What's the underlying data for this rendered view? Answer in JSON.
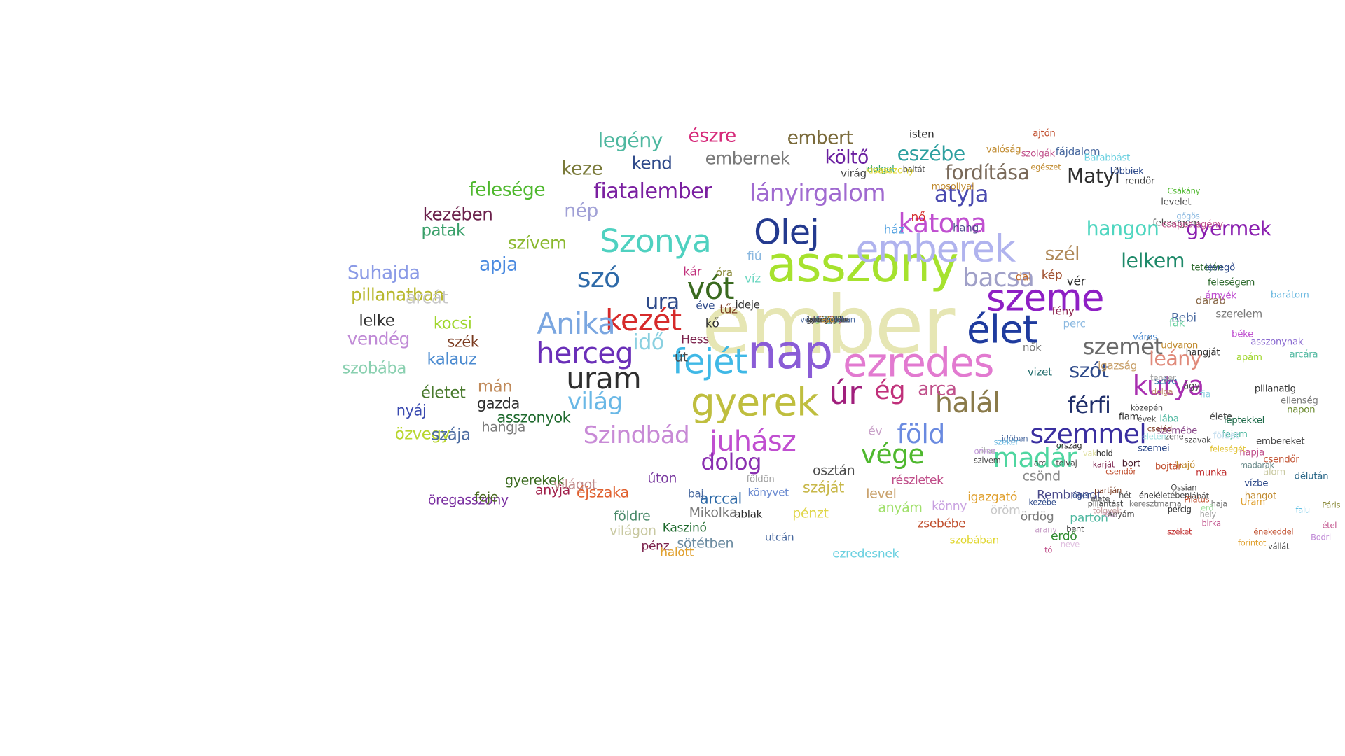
{
  "words": [
    {
      "text": "ember",
      "color": "#e6e6b4"
    },
    {
      "text": "asszony",
      "color": "#a6e22e"
    },
    {
      "text": "nap",
      "color": "#8a5cd6"
    },
    {
      "text": "ezredes",
      "color": "#e27ad0"
    },
    {
      "text": "élet",
      "color": "#1f3b9e"
    },
    {
      "text": "szeme",
      "color": "#8e1fc4"
    },
    {
      "text": "emberek",
      "color": "#b0b3ee"
    },
    {
      "text": "gyerek",
      "color": "#bfbe3e"
    },
    {
      "text": "Olej",
      "color": "#243a8f"
    },
    {
      "text": "Szonya",
      "color": "#4fd1c0"
    },
    {
      "text": "fejét",
      "color": "#3fb8e6"
    },
    {
      "text": "herceg",
      "color": "#6a2fb8"
    },
    {
      "text": "uram",
      "color": "#2e2e2e"
    },
    {
      "text": "kezét",
      "color": "#d62a2a"
    },
    {
      "text": "Anika",
      "color": "#7aa6e0"
    },
    {
      "text": "úr",
      "color": "#a01f7c"
    },
    {
      "text": "juhász",
      "color": "#c04fd0"
    },
    {
      "text": "halál",
      "color": "#8a7a4a"
    },
    {
      "text": "föld",
      "color": "#6a8ae0"
    },
    {
      "text": "madár",
      "color": "#4fd6a0"
    },
    {
      "text": "vége",
      "color": "#4fb82e"
    },
    {
      "text": "kutya",
      "color": "#a82fb0"
    },
    {
      "text": "szemmel",
      "color": "#3a2fa0"
    },
    {
      "text": "katona",
      "color": "#c04fd0"
    },
    {
      "text": "bacsa",
      "color": "#a0a0c8"
    },
    {
      "text": "vót",
      "color": "#3a6a1f"
    },
    {
      "text": "szó",
      "color": "#2e6aa8"
    },
    {
      "text": "világ",
      "color": "#6ab8e6"
    },
    {
      "text": "Szindbád",
      "color": "#c88ad6"
    },
    {
      "text": "dolog",
      "color": "#8a2fb0"
    },
    {
      "text": "férfi",
      "color": "#1f2e6a"
    },
    {
      "text": "ég",
      "color": "#c0307a"
    },
    {
      "text": "arca",
      "color": "#c04f8a"
    },
    {
      "text": "szemét",
      "color": "#6a6a6a"
    },
    {
      "text": "leány",
      "color": "#e08a7a"
    },
    {
      "text": "szót",
      "color": "#2e4a8a"
    },
    {
      "text": "lányirgalom",
      "color": "#a06ad0"
    },
    {
      "text": "fiatalember",
      "color": "#7a1fa0"
    },
    {
      "text": "atyja",
      "color": "#4a4ab0"
    },
    {
      "text": "fordítása",
      "color": "#7a6a5a"
    },
    {
      "text": "Matyi",
      "color": "#2e2e2e"
    },
    {
      "text": "hangon",
      "color": "#4fd6c0"
    },
    {
      "text": "gyermek",
      "color": "#8a1fb0"
    },
    {
      "text": "lelkem",
      "color": "#1f8a6a"
    },
    {
      "text": "szél",
      "color": "#b08a5a"
    },
    {
      "text": "ura",
      "color": "#2e4a8a"
    },
    {
      "text": "idő",
      "color": "#8ad0e0"
    },
    {
      "text": "legény",
      "color": "#4fb8a0"
    },
    {
      "text": "észre",
      "color": "#d62a7a"
    },
    {
      "text": "embert",
      "color": "#7a6a3a"
    },
    {
      "text": "eszébe",
      "color": "#2ea0a0"
    },
    {
      "text": "költő",
      "color": "#6a1fa0"
    },
    {
      "text": "embernek",
      "color": "#7a7a7a"
    },
    {
      "text": "keze",
      "color": "#7a7a3a"
    },
    {
      "text": "kend",
      "color": "#2e4a8a"
    },
    {
      "text": "felesége",
      "color": "#4fb82e"
    },
    {
      "text": "kezében",
      "color": "#6a1f4a"
    },
    {
      "text": "nép",
      "color": "#a0a0d6"
    },
    {
      "text": "patak",
      "color": "#3aa06a"
    },
    {
      "text": "szívem",
      "color": "#8ab82e"
    },
    {
      "text": "apja",
      "color": "#4a8ae0"
    },
    {
      "text": "Suhajda",
      "color": "#8a9ae6"
    },
    {
      "text": "pillanatban",
      "color": "#b8b82e"
    },
    {
      "text": "arcát",
      "color": "#c8c8c8"
    },
    {
      "text": "lelke",
      "color": "#2e2e2e"
    },
    {
      "text": "kocsi",
      "color": "#a0d62e"
    },
    {
      "text": "vendég",
      "color": "#c08ad6"
    },
    {
      "text": "kalauz",
      "color": "#4a8ad0"
    },
    {
      "text": "szék",
      "color": "#7a3a1f"
    },
    {
      "text": "szobába",
      "color": "#8ad0b0"
    },
    {
      "text": "életet",
      "color": "#4a7a2e"
    },
    {
      "text": "mán",
      "color": "#c08a5a"
    },
    {
      "text": "nyáj",
      "color": "#3a4ab0"
    },
    {
      "text": "asszonyok",
      "color": "#1f6a2e"
    },
    {
      "text": "gazda",
      "color": "#2e2e2e"
    },
    {
      "text": "özvegy",
      "color": "#b8d62e"
    },
    {
      "text": "szája",
      "color": "#4a6aa0"
    },
    {
      "text": "hangja",
      "color": "#7a7a7a"
    },
    {
      "text": "gyerekek",
      "color": "#3a6a1f"
    },
    {
      "text": "anyja",
      "color": "#a01f4a"
    },
    {
      "text": "öregasszony",
      "color": "#7a2fa0"
    },
    {
      "text": "feje",
      "color": "#4a6a1f"
    },
    {
      "text": "világot",
      "color": "#c08a8a"
    },
    {
      "text": "éjszaka",
      "color": "#e0602e"
    },
    {
      "text": "úton",
      "color": "#7a3aa0"
    },
    {
      "text": "arccal",
      "color": "#2e6aa8"
    },
    {
      "text": "földre",
      "color": "#4a8a6a"
    },
    {
      "text": "világon",
      "color": "#c8c8a0"
    },
    {
      "text": "pénz",
      "color": "#7a1f4a"
    },
    {
      "text": "Kaszinó",
      "color": "#1f6a2e"
    },
    {
      "text": "halott",
      "color": "#e0a02e"
    },
    {
      "text": "sötétben",
      "color": "#6a8aa0"
    },
    {
      "text": "Mikolka",
      "color": "#7a7a7a"
    },
    {
      "text": "pénzt",
      "color": "#e0d64a"
    },
    {
      "text": "száját",
      "color": "#c8b84a"
    },
    {
      "text": "anyám",
      "color": "#a0e06a"
    },
    {
      "text": "osztán",
      "color": "#4a4a4a"
    },
    {
      "text": "level",
      "color": "#c8a06a"
    },
    {
      "text": "könny",
      "color": "#c8a0e0"
    },
    {
      "text": "részletek",
      "color": "#c04f8a"
    },
    {
      "text": "csönd",
      "color": "#8a8a8a"
    },
    {
      "text": "igazgató",
      "color": "#e0a02e"
    },
    {
      "text": "öröm",
      "color": "#c8c8c8"
    },
    {
      "text": "zsebébe",
      "color": "#c04f2e"
    },
    {
      "text": "ördög",
      "color": "#7a7a7a"
    },
    {
      "text": "Rembrandt",
      "color": "#4a4a8a"
    },
    {
      "text": "parton",
      "color": "#4fb8a0"
    },
    {
      "text": "erdő",
      "color": "#2e8a2e"
    },
    {
      "text": "szobában",
      "color": "#e0d62e"
    },
    {
      "text": "ezredesnek",
      "color": "#6ad0e0"
    },
    {
      "text": "utcán",
      "color": "#4a6aa0"
    },
    {
      "text": "könyvet",
      "color": "#6a8ad0"
    },
    {
      "text": "ablak",
      "color": "#2e2e2e"
    },
    {
      "text": "baj",
      "color": "#4a6aa0"
    },
    {
      "text": "földön",
      "color": "#a0a0a0"
    },
    {
      "text": "év",
      "color": "#c8a0c8"
    },
    {
      "text": "út",
      "color": "#4a4a4a"
    },
    {
      "text": "Hess",
      "color": "#7a1f4a"
    },
    {
      "text": "kő",
      "color": "#2e2e2e"
    },
    {
      "text": "tűz",
      "color": "#7a3a1f"
    },
    {
      "text": "éve",
      "color": "#2e4a8a"
    },
    {
      "text": "ideje",
      "color": "#2e2e2e"
    },
    {
      "text": "kár",
      "color": "#c02e7a"
    },
    {
      "text": "óra",
      "color": "#8a8a3a"
    },
    {
      "text": "fiú",
      "color": "#8ab8e0"
    },
    {
      "text": "víz",
      "color": "#6ad6c0"
    },
    {
      "text": "ház",
      "color": "#4fa0e0"
    },
    {
      "text": "nő",
      "color": "#d62a2a"
    },
    {
      "text": "hang",
      "color": "#4a4a8a"
    },
    {
      "text": "kép",
      "color": "#a04f2e"
    },
    {
      "text": "vér",
      "color": "#2e2e2e"
    },
    {
      "text": "dal",
      "color": "#c06a2e"
    },
    {
      "text": "fény",
      "color": "#8a1f4a"
    },
    {
      "text": "perc",
      "color": "#8ab8e0"
    },
    {
      "text": "Rebi",
      "color": "#4a6aa0"
    },
    {
      "text": "darab",
      "color": "#8a6a4a"
    },
    {
      "text": "fák",
      "color": "#6ad0a0"
    },
    {
      "text": "város",
      "color": "#4a8ad0"
    },
    {
      "text": "nők",
      "color": "#7a7a7a"
    },
    {
      "text": "vizet",
      "color": "#1f6a6a"
    },
    {
      "text": "udvaron",
      "color": "#c08a2e"
    },
    {
      "text": "igazság",
      "color": "#c8a06a"
    },
    {
      "text": "szíve",
      "color": "#2e6aa8"
    },
    {
      "text": "fia",
      "color": "#8ad0e0"
    },
    {
      "text": "élete",
      "color": "#4a4a4a"
    },
    {
      "text": "léptekkel",
      "color": "#1f6a4a"
    },
    {
      "text": "szemébe",
      "color": "#8a4a8a"
    },
    {
      "text": "fejem",
      "color": "#4fb8a0"
    },
    {
      "text": "hajó",
      "color": "#c08a2e"
    },
    {
      "text": "szemei",
      "color": "#2e4a8a"
    },
    {
      "text": "napja",
      "color": "#c04f8a"
    },
    {
      "text": "bojtár",
      "color": "#c04f2e"
    },
    {
      "text": "munka",
      "color": "#c02e2e"
    },
    {
      "text": "bort",
      "color": "#4a1f2e"
    },
    {
      "text": "Uram",
      "color": "#e0a02e"
    },
    {
      "text": "hangot",
      "color": "#c08a2e"
    },
    {
      "text": "isten",
      "color": "#2e2e2e"
    },
    {
      "text": "virág",
      "color": "#4a4a4a"
    },
    {
      "text": "dolgot",
      "color": "#2ea06a"
    },
    {
      "text": "kisasszony",
      "color": "#e0d62e"
    },
    {
      "text": "baltát",
      "color": "#4a4a4a"
    },
    {
      "text": "mosollyal",
      "color": "#c08a2e"
    },
    {
      "text": "szolgák",
      "color": "#c04f8a"
    },
    {
      "text": "fájdalom",
      "color": "#4a6aa0"
    },
    {
      "text": "Barabbást",
      "color": "#6ad0e0"
    },
    {
      "text": "valóság",
      "color": "#c08a2e"
    },
    {
      "text": "ajtón",
      "color": "#c04f2e"
    },
    {
      "text": "egészet",
      "color": "#c08a2e"
    },
    {
      "text": "többiek",
      "color": "#2e4a8a"
    },
    {
      "text": "rendőr",
      "color": "#4a4a4a"
    },
    {
      "text": "levelet",
      "color": "#4a4a4a"
    },
    {
      "text": "felesegem",
      "color": "#4a4a4a"
    },
    {
      "text": "csaposlegény",
      "color": "#c04f8a"
    },
    {
      "text": "Csákány",
      "color": "#4fb82e"
    },
    {
      "text": "gőgös",
      "color": "#8ab8e0"
    },
    {
      "text": "tetején",
      "color": "#2e6a2e"
    },
    {
      "text": "levegő",
      "color": "#2e4a8a"
    },
    {
      "text": "feleségem",
      "color": "#2e6a2e"
    },
    {
      "text": "szerelem",
      "color": "#7a7a7a"
    },
    {
      "text": "barátom",
      "color": "#6ab8e0"
    },
    {
      "text": "árnyék",
      "color": "#c04fd0"
    },
    {
      "text": "béke",
      "color": "#c04fd0"
    },
    {
      "text": "asszonynak",
      "color": "#8a6ad0"
    },
    {
      "text": "apám",
      "color": "#a0d62e"
    },
    {
      "text": "arcára",
      "color": "#4fb8a0"
    },
    {
      "text": "napon",
      "color": "#6a8a2e"
    },
    {
      "text": "ellenség",
      "color": "#7a7a7a"
    },
    {
      "text": "pillanatig",
      "color": "#2e2e2e"
    },
    {
      "text": "ágy",
      "color": "#4a4a4a"
    },
    {
      "text": "hangját",
      "color": "#2e2e2e"
    },
    {
      "text": "tenger",
      "color": "#a0a0a0"
    },
    {
      "text": "dolga",
      "color": "#c08a6a"
    },
    {
      "text": "közepén",
      "color": "#4a4a4a"
    },
    {
      "text": "lába",
      "color": "#4fb8a0"
    },
    {
      "text": "fiam",
      "color": "#2e2e2e"
    },
    {
      "text": "földet",
      "color": "#c8e0f0"
    },
    {
      "text": "embereket",
      "color": "#4a4a4a"
    },
    {
      "text": "álom",
      "color": "#c8c8a0"
    },
    {
      "text": "délután",
      "color": "#2e6a8a"
    },
    {
      "text": "vízbe",
      "color": "#2e4a8a"
    },
    {
      "text": "csendőr",
      "color": "#c04f2e"
    },
    {
      "text": "madarak",
      "color": "#6a8a8a"
    },
    {
      "text": "haja",
      "color": "#7a7a7a"
    },
    {
      "text": "percig",
      "color": "#2e2e2e"
    },
    {
      "text": "erő",
      "color": "#a0e0a0"
    },
    {
      "text": "hely",
      "color": "#a0a0a0"
    },
    {
      "text": "falu",
      "color": "#4fb8e0"
    },
    {
      "text": "Páris",
      "color": "#8a8a3a"
    },
    {
      "text": "étel",
      "color": "#c04f8a"
    },
    {
      "text": "Bodri",
      "color": "#c08ad6"
    },
    {
      "text": "énekeddel",
      "color": "#c04f2e"
    },
    {
      "text": "forintot",
      "color": "#e0a02e"
    },
    {
      "text": "vállát",
      "color": "#4a4a4a"
    },
    {
      "text": "birka",
      "color": "#c04f8a"
    },
    {
      "text": "széket",
      "color": "#c02e2e"
    },
    {
      "text": "lábát",
      "color": "#4a4a4a"
    },
    {
      "text": "rész",
      "color": "#c8a0c8"
    },
    {
      "text": "bent",
      "color": "#2e2e2e"
    },
    {
      "text": "neve",
      "color": "#e0c0e0"
    },
    {
      "text": "tó",
      "color": "#c04f8a"
    },
    {
      "text": "kezébe",
      "color": "#2e4a8a"
    },
    {
      "text": "arany",
      "color": "#c8a0c8"
    },
    {
      "text": "ország",
      "color": "#2e2e2e"
    },
    {
      "text": "időben",
      "color": "#4a6aa0"
    },
    {
      "text": "szekér",
      "color": "#6ab8e0"
    },
    {
      "text": "hold",
      "color": "#2e2e2e"
    },
    {
      "text": "égen",
      "color": "#2e4a8a"
    },
    {
      "text": "szivem",
      "color": "#4a4a4a"
    },
    {
      "text": "vihar",
      "color": "#a0a0a0"
    },
    {
      "text": "vak",
      "color": "#e0e0a0"
    },
    {
      "text": "arc",
      "color": "#4a4a4a"
    },
    {
      "text": "tolvaj",
      "color": "#4a4a4a"
    },
    {
      "text": "orvos",
      "color": "#c8a0e0"
    },
    {
      "text": "karját",
      "color": "#7a1f4a"
    },
    {
      "text": "partján",
      "color": "#7a3a1f"
    },
    {
      "text": "élete",
      "color": "#4a4a4a"
    },
    {
      "text": "életem",
      "color": "#a0e0e0"
    },
    {
      "text": "cseléd",
      "color": "#7a3a1f"
    },
    {
      "text": "évek",
      "color": "#4a4a4a"
    },
    {
      "text": "zene",
      "color": "#4a4a4a"
    },
    {
      "text": "szavak",
      "color": "#4a4a4a"
    },
    {
      "text": "csendőr",
      "color": "#c04f2e"
    },
    {
      "text": "Ossian",
      "color": "#4a4a4a"
    },
    {
      "text": "Pilátus",
      "color": "#c04f2e"
    },
    {
      "text": "feleségét",
      "color": "#e0c02e"
    },
    {
      "text": "keresztmama",
      "color": "#7a7a7a"
    },
    {
      "text": "pillantást",
      "color": "#4a4a4a"
    },
    {
      "text": "hét",
      "color": "#4a4a4a"
    },
    {
      "text": "ének",
      "color": "#2e2e2e"
    },
    {
      "text": "életében",
      "color": "#4a4a4a"
    },
    {
      "text": "Anyám",
      "color": "#4a4a4a"
    },
    {
      "text": "tölgyek",
      "color": "#c8a0a0"
    },
    {
      "text": "levegőben",
      "color": "#4a4a4a"
    },
    {
      "text": "szörnyü",
      "color": "#2e6a2e"
    },
    {
      "text": "szavakat",
      "color": "#2e2e2e"
    },
    {
      "text": "férfiak",
      "color": "#c08a2e"
    },
    {
      "text": "ajtó",
      "color": "#c08a2e"
    },
    {
      "text": "óriás",
      "color": "#c08a8a"
    },
    {
      "text": "lélek",
      "color": "#c02e2e"
    },
    {
      "text": "gránát",
      "color": "#a0e06a"
    },
    {
      "text": "lámpa",
      "color": "#4a4a4a"
    },
    {
      "text": "részlet",
      "color": "#c08a2e"
    },
    {
      "text": "szemembe",
      "color": "#2e2e2e"
    },
    {
      "text": "halála",
      "color": "#4a4a4a"
    },
    {
      "text": "szív",
      "color": "#e0d62e"
    },
    {
      "text": "vágy",
      "color": "#a0a0a0"
    },
    {
      "text": "végét",
      "color": "#6ad0e0"
    },
    {
      "text": "hajnal",
      "color": "#4a4a4a"
    },
    {
      "text": "törvény",
      "color": "#c04f8a"
    },
    {
      "text": "vérehomlokán",
      "color": "#4a6aa0"
    },
    {
      "text": "kezével",
      "color": "#4a4a4a"
    },
    {
      "text": "kézzel",
      "color": "#2e2e2e"
    },
    {
      "text": "helyre",
      "color": "#6ad0e0"
    },
    {
      "text": "utat",
      "color": "#4a4a4a"
    },
    {
      "text": "gyermekek",
      "color": "#4a4a4a"
    },
    {
      "text": "ásó",
      "color": "#e0a02e"
    }
  ]
}
